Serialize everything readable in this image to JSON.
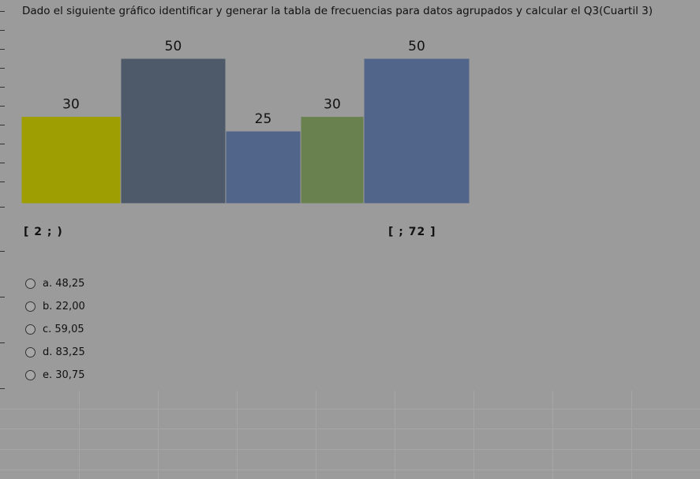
{
  "question": {
    "text": "Dado el siguiente gráfico identificar y generar la tabla de frecuencias para datos agrupados y calcular el Q3(Cuartil 3)"
  },
  "interval_labels": {
    "left": "[ 2 ;   )",
    "right": "[     ; 72 ]"
  },
  "chart_data": {
    "type": "bar",
    "categories": [
      "",
      "",
      "",
      "",
      ""
    ],
    "values": [
      30,
      50,
      25,
      30,
      50
    ],
    "data_labels": [
      "30",
      "50",
      "25",
      "30",
      "50"
    ],
    "colors": [
      "#9e9e02",
      "#4e5a69",
      "#51658a",
      "#68814f",
      "#51658a"
    ],
    "title": "",
    "xlabel": "",
    "ylabel": "",
    "ylim": [
      0,
      50
    ],
    "grid": false
  },
  "options": [
    {
      "label": "a. 48,25"
    },
    {
      "label": "b. 22,00"
    },
    {
      "label": "c. 59,05"
    },
    {
      "label": "d. 83,25"
    },
    {
      "label": "e. 30,75"
    }
  ]
}
